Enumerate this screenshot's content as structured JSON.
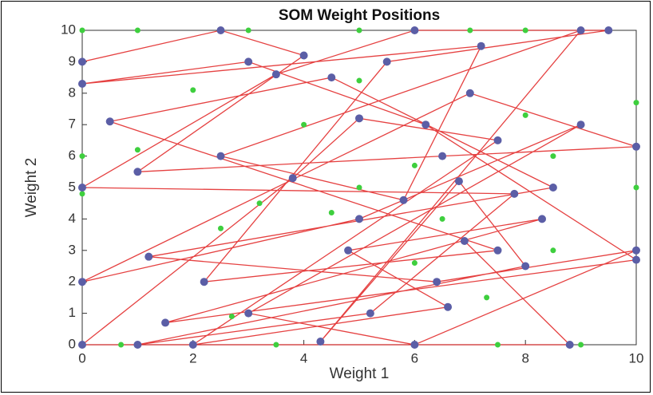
{
  "chart_data": {
    "type": "scatter",
    "title": "SOM Weight Positions",
    "x_label": "Weight 1",
    "y_label": "Weight 2",
    "xlim": [
      0,
      10
    ],
    "ylim": [
      0,
      10
    ],
    "xticks": [
      0,
      2,
      4,
      6,
      8,
      10
    ],
    "yticks": [
      0,
      1,
      2,
      3,
      4,
      5,
      6,
      7,
      8,
      9,
      10
    ],
    "series": [
      {
        "color": "#3ecf3e",
        "x": [
          0,
          1,
          3,
          5,
          7,
          8,
          0,
          0,
          2.5,
          5,
          6,
          8.5,
          7.5,
          3.5,
          1,
          4,
          6.5,
          8,
          2,
          5,
          9,
          0.7,
          4.5,
          7.3,
          8.5,
          3.2,
          6,
          10,
          10,
          2.7
        ],
        "y": [
          10,
          10,
          10,
          10,
          10,
          10,
          6,
          4.8,
          3.7,
          5,
          5.7,
          3,
          0,
          0,
          6.2,
          7,
          4,
          7.3,
          8.1,
          8.4,
          0,
          0,
          4.2,
          1.5,
          6,
          4.5,
          2.6,
          5,
          7.7,
          0.9
        ]
      },
      {
        "color": "#5b5ea6",
        "line_color": "#e02020",
        "x": [
          0,
          2.5,
          4,
          1,
          6.5,
          10,
          7,
          0,
          5,
          9,
          3,
          6,
          10,
          6.4,
          1.2,
          8.5,
          4.5,
          0.5,
          7.5,
          2.2,
          5.5,
          9.5,
          6,
          3.5,
          0,
          7.8,
          5.2,
          1,
          8,
          6.8,
          4.3,
          9,
          2.5,
          5.8,
          7.2,
          0,
          3,
          6.2,
          10,
          1.5,
          8.3,
          4.8,
          6.6,
          2,
          7.5,
          5,
          3.8,
          0,
          8.8,
          6.9
        ],
        "y": [
          9,
          10,
          9.2,
          5.5,
          6,
          6.3,
          8,
          2,
          4,
          7,
          1,
          0,
          3,
          2,
          2.8,
          5,
          8.5,
          7.1,
          3,
          2,
          9,
          10,
          10,
          8.6,
          5,
          4.8,
          1,
          0,
          2.5,
          5.2,
          0.1,
          10,
          6,
          4.6,
          9.5,
          8.3,
          9,
          7,
          2.7,
          0.7,
          4,
          3,
          1.2,
          0,
          6.5,
          7.2,
          5.3,
          0,
          0,
          3.3
        ]
      }
    ]
  }
}
